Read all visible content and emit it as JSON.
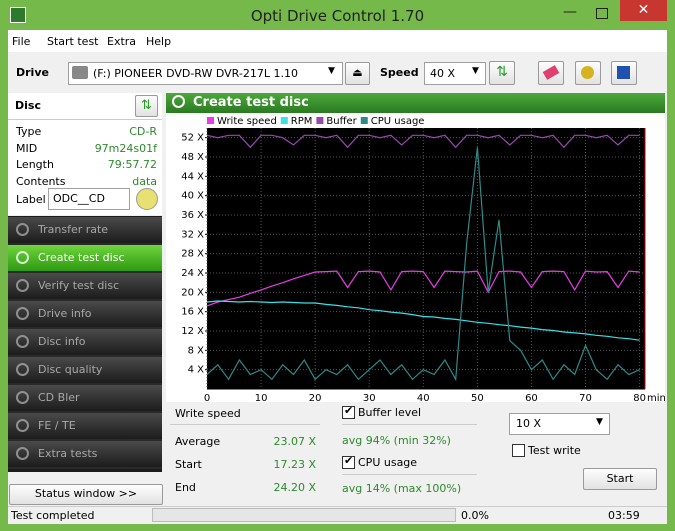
{
  "window": {
    "title": "Opti Drive Control 1.70"
  },
  "menu": [
    "File",
    "Start test",
    "Extra",
    "Help"
  ],
  "toolbar": {
    "drive_label": "Drive",
    "drive": "(F:)  PIONEER DVD-RW  DVR-217L 1.10",
    "speed_label": "Speed",
    "speed": "40 X"
  },
  "disc": {
    "title": "Disc",
    "rows": [
      [
        "Type",
        "CD-R"
      ],
      [
        "MID",
        "97m24s01f"
      ],
      [
        "Length",
        "79:57.72"
      ],
      [
        "Contents",
        "data"
      ]
    ],
    "label_label": "Label",
    "label": "ODC__CD"
  },
  "nav": [
    "Transfer rate",
    "Create test disc",
    "Verify test disc",
    "Drive info",
    "Disc info",
    "Disc quality",
    "CD Bler",
    "FE / TE",
    "Extra tests"
  ],
  "status_window": "Status window >>",
  "chart_data": {
    "type": "line",
    "title": "Create test disc",
    "x_unit": "min",
    "x": [
      0,
      2,
      4,
      6,
      8,
      10,
      12,
      14,
      16,
      18,
      20,
      22,
      24,
      26,
      28,
      30,
      32,
      34,
      36,
      38,
      40,
      42,
      44,
      46,
      48,
      50,
      52,
      54,
      56,
      58,
      60,
      62,
      64,
      66,
      68,
      70,
      72,
      74,
      76,
      78,
      80
    ],
    "series": [
      {
        "name": "Write speed",
        "color": "#e83ce8",
        "values": [
          17.2,
          18,
          18.5,
          19,
          19.8,
          20.5,
          21.3,
          22,
          22.8,
          23.5,
          24.2,
          24.3,
          24.4,
          21,
          24.3,
          24.4,
          24.2,
          20.5,
          24.3,
          24.4,
          24.3,
          21,
          24.4,
          24.3,
          24.2,
          24.4,
          20,
          24.3,
          24.4,
          24.2,
          21,
          24.3,
          24.4,
          24.3,
          20.5,
          24.4,
          24.2,
          24.3,
          21,
          24.4,
          24.2
        ]
      },
      {
        "name": "RPM",
        "color": "#3ce0e8",
        "values": [
          18,
          18.2,
          18.1,
          18,
          18.1,
          18,
          17.9,
          18,
          17.9,
          17.8,
          17.8,
          17.5,
          17.3,
          17,
          16.8,
          16.4,
          16.2,
          15.9,
          15.7,
          15.4,
          15,
          14.9,
          14.6,
          14.4,
          14.1,
          13.8,
          13.6,
          13.3,
          13.1,
          12.8,
          12.6,
          12.3,
          12.1,
          11.8,
          11.6,
          11.4,
          11.1,
          10.9,
          10.6,
          10.4,
          10.1
        ]
      },
      {
        "name": "Buffer",
        "color": "#9848b0",
        "values": [
          52.5,
          52,
          52.5,
          52.5,
          50,
          52.5,
          52.5,
          52,
          50.5,
          52.5,
          52.5,
          52,
          52.5,
          50,
          52.5,
          52.5,
          52,
          52.5,
          50.5,
          52.5,
          52.5,
          52,
          52.5,
          50,
          52.5,
          52.5,
          52,
          52.5,
          50.5,
          52.5,
          52.5,
          52,
          52.5,
          50,
          52.5,
          52.5,
          52,
          52.5,
          50.5,
          52.5,
          52.5
        ]
      },
      {
        "name": "CPU usage",
        "color": "#2f8a8a",
        "values": [
          3,
          5,
          2,
          6,
          3,
          4,
          2,
          5,
          3,
          6,
          2,
          4,
          3,
          5,
          2,
          4,
          6,
          3,
          5,
          2,
          4,
          3,
          6,
          2,
          30,
          50,
          20,
          35,
          10,
          8,
          4,
          6,
          2,
          5,
          3,
          9,
          4,
          2,
          5,
          3,
          4
        ]
      }
    ],
    "xlim": [
      0,
      81
    ],
    "ylim": [
      0,
      54
    ],
    "xticks": [
      0,
      10,
      20,
      30,
      40,
      50,
      60,
      70,
      80
    ],
    "yticks": [
      {
        "value": 4,
        "label": "4 X"
      },
      {
        "value": 8,
        "label": "8 X"
      },
      {
        "value": 12,
        "label": "12 X"
      },
      {
        "value": 16,
        "label": "16 X"
      },
      {
        "value": 20,
        "label": "20 X"
      },
      {
        "value": 24,
        "label": "24 X"
      },
      {
        "value": 28,
        "label": "28 X"
      },
      {
        "value": 32,
        "label": "32 X"
      },
      {
        "value": 36,
        "label": "36 X"
      },
      {
        "value": 40,
        "label": "40 X"
      },
      {
        "value": 44,
        "label": "44 X"
      },
      {
        "value": 48,
        "label": "48 X"
      },
      {
        "value": 52,
        "label": "52 X"
      }
    ],
    "grid": true
  },
  "stats": {
    "heading": "Write speed",
    "rows": [
      [
        "Average",
        "23.07 X"
      ],
      [
        "Start",
        "17.23 X"
      ],
      [
        "End",
        "24.20 X"
      ]
    ],
    "buffer_check": "Buffer level",
    "buffer_info": "avg 94% (min 32%)",
    "cpu_check": "CPU usage",
    "cpu_info": "avg 14% (max 100%)",
    "speed": "10 X",
    "test_write": "Test write",
    "start": "Start"
  },
  "status": {
    "text": "Test completed",
    "progress": "0.0%",
    "time": "03:59"
  }
}
